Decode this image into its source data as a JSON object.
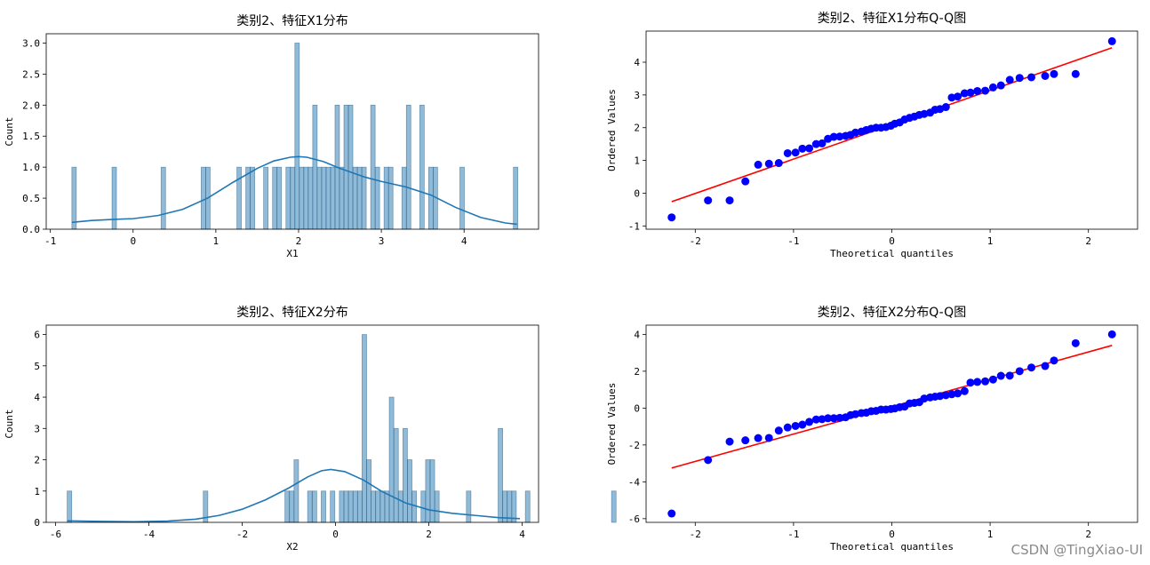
{
  "chart_data": [
    {
      "type": "histogram_kde",
      "title": "类别2、特征X1分布",
      "xlabel": "X1",
      "ylabel": "Count",
      "xlim": [
        -1.05,
        4.9
      ],
      "ylim": [
        0,
        3.15
      ],
      "xticks": [
        -1,
        0,
        1,
        2,
        3,
        4
      ],
      "yticks": [
        0.0,
        0.5,
        1.0,
        1.5,
        2.0,
        2.5,
        3.0
      ],
      "ytick_labels": [
        "0.0",
        "0.5",
        "1.0",
        "1.5",
        "2.0",
        "2.5",
        "3.0"
      ],
      "bin_start": -0.74,
      "bin_width": 0.0539,
      "bar_color": "#1f77b4",
      "bar_alpha": 0.5,
      "bar_counts": [
        1,
        0,
        0,
        0,
        0,
        0,
        0,
        0,
        0,
        1,
        0,
        0,
        0,
        0,
        0,
        0,
        0,
        0,
        0,
        0,
        1,
        0,
        0,
        0,
        0,
        0,
        0,
        0,
        0,
        1,
        1,
        0,
        0,
        0,
        0,
        0,
        0,
        1,
        0,
        1,
        1,
        0,
        0,
        1,
        0,
        1,
        1,
        0,
        1,
        1,
        3,
        1,
        1,
        1,
        2,
        1,
        1,
        1,
        1,
        2,
        1,
        2,
        2,
        1,
        1,
        1,
        0,
        2,
        1,
        0,
        1,
        1,
        0,
        0,
        1,
        2,
        0,
        0,
        2,
        0,
        1,
        1,
        0,
        0,
        0,
        0,
        0,
        1,
        0,
        0,
        0,
        0,
        0,
        0,
        0,
        0,
        0,
        0,
        0,
        1
      ],
      "kde": {
        "x": [
          -0.74,
          -0.5,
          -0.2,
          0.0,
          0.3,
          0.6,
          0.9,
          1.2,
          1.5,
          1.7,
          1.9,
          2.0,
          2.1,
          2.3,
          2.5,
          2.8,
          3.0,
          3.3,
          3.6,
          3.9,
          4.2,
          4.5,
          4.64
        ],
        "y": [
          0.11,
          0.14,
          0.16,
          0.17,
          0.22,
          0.32,
          0.5,
          0.75,
          0.98,
          1.1,
          1.16,
          1.17,
          1.16,
          1.09,
          0.98,
          0.84,
          0.77,
          0.68,
          0.55,
          0.35,
          0.19,
          0.1,
          0.08
        ],
        "color": "#1f77b4"
      }
    },
    {
      "type": "qqplot",
      "title": "类别2、特征X1分布Q-Q图",
      "xlabel": "Theoretical quantiles",
      "ylabel": "Ordered Values",
      "xlim": [
        -2.5,
        2.5
      ],
      "ylim": [
        -1.1,
        4.95
      ],
      "xticks": [
        -2,
        -1,
        0,
        1,
        2
      ],
      "yticks": [
        -1,
        0,
        1,
        2,
        3,
        4
      ],
      "point_color": "#0000ff",
      "line_color": "#ff0000",
      "line": {
        "x": [
          -2.24,
          2.24
        ],
        "y": [
          -0.26,
          4.44
        ]
      },
      "theoretical": [
        -2.24,
        -1.87,
        -1.65,
        -1.49,
        -1.36,
        -1.25,
        -1.15,
        -1.06,
        -0.98,
        -0.91,
        -0.84,
        -0.77,
        -0.71,
        -0.65,
        -0.59,
        -0.53,
        -0.47,
        -0.42,
        -0.37,
        -0.31,
        -0.26,
        -0.21,
        -0.16,
        -0.11,
        -0.06,
        -0.01,
        0.03,
        0.08,
        0.13,
        0.18,
        0.23,
        0.28,
        0.33,
        0.39,
        0.44,
        0.49,
        0.55,
        0.61,
        0.67,
        0.74,
        0.8,
        0.87,
        0.95,
        1.03,
        1.11,
        1.2,
        1.3,
        1.42,
        1.56,
        1.65,
        1.87,
        2.24
      ],
      "ordered": [
        -0.74,
        -0.22,
        -0.22,
        0.36,
        0.87,
        0.9,
        0.92,
        1.22,
        1.24,
        1.36,
        1.37,
        1.5,
        1.52,
        1.66,
        1.72,
        1.73,
        1.75,
        1.78,
        1.85,
        1.88,
        1.93,
        1.97,
        2.0,
        2.0,
        2.02,
        2.06,
        2.12,
        2.16,
        2.25,
        2.3,
        2.34,
        2.39,
        2.42,
        2.46,
        2.55,
        2.57,
        2.63,
        2.92,
        2.95,
        3.05,
        3.07,
        3.12,
        3.13,
        3.23,
        3.29,
        3.46,
        3.52,
        3.54,
        3.58,
        3.64,
        3.64,
        4.64
      ]
    },
    {
      "type": "histogram_kde",
      "title": "类别2、特征X2分布",
      "xlabel": "X2",
      "ylabel": "Count",
      "xlim": [
        -6.2,
        4.35
      ],
      "ylim": [
        0,
        6.3
      ],
      "xticks": [
        -6,
        -4,
        -2,
        0,
        2,
        4
      ],
      "yticks": [
        0,
        1,
        2,
        3,
        4,
        5,
        6
      ],
      "ytick_labels": [
        "0",
        "1",
        "2",
        "3",
        "4",
        "5",
        "6"
      ],
      "bin_start": -5.75,
      "bin_width": 0.0972,
      "bar_color": "#1f77b4",
      "bar_alpha": 0.5,
      "bar_counts": [
        1,
        0,
        0,
        0,
        0,
        0,
        0,
        0,
        0,
        0,
        0,
        0,
        0,
        0,
        0,
        0,
        0,
        0,
        0,
        0,
        0,
        0,
        0,
        0,
        0,
        0,
        0,
        0,
        0,
        0,
        1,
        0,
        0,
        0,
        0,
        0,
        0,
        0,
        0,
        0,
        0,
        0,
        0,
        0,
        0,
        0,
        0,
        0,
        1,
        1,
        2,
        0,
        0,
        1,
        1,
        0,
        1,
        0,
        1,
        0,
        1,
        1,
        1,
        1,
        1,
        6,
        2,
        1,
        1,
        1,
        1,
        4,
        3,
        1,
        3,
        2,
        1,
        0,
        1,
        2,
        2,
        1,
        0,
        0,
        0,
        0,
        0,
        0,
        1,
        0,
        0,
        0,
        0,
        0,
        0,
        3,
        1,
        1,
        1,
        0,
        0,
        1,
        0,
        0,
        0,
        0,
        0,
        0,
        0,
        0,
        0,
        0,
        0,
        0,
        0,
        0,
        0,
        0,
        0,
        0,
        1
      ],
      "kde": {
        "x": [
          -5.75,
          -5.0,
          -4.3,
          -3.6,
          -3.0,
          -2.5,
          -2.0,
          -1.5,
          -1.0,
          -0.6,
          -0.3,
          -0.1,
          0.2,
          0.6,
          1.0,
          1.5,
          2.0,
          2.5,
          3.0,
          3.5,
          3.95
        ],
        "y": [
          0.05,
          0.03,
          0.02,
          0.04,
          0.1,
          0.22,
          0.42,
          0.72,
          1.1,
          1.45,
          1.65,
          1.69,
          1.62,
          1.35,
          0.98,
          0.62,
          0.4,
          0.29,
          0.22,
          0.15,
          0.12
        ],
        "color": "#1f77b4"
      }
    },
    {
      "type": "qqplot",
      "title": "类别2、特征X2分布Q-Q图",
      "xlabel": "Theoretical quantiles",
      "ylabel": "Ordered Values",
      "xlim": [
        -2.5,
        2.5
      ],
      "ylim": [
        -6.2,
        4.5
      ],
      "xticks": [
        -2,
        -1,
        0,
        1,
        2
      ],
      "yticks": [
        -6,
        -4,
        -2,
        0,
        2,
        4
      ],
      "point_color": "#0000ff",
      "line_color": "#ff0000",
      "line": {
        "x": [
          -2.24,
          2.24
        ],
        "y": [
          -3.25,
          3.4
        ]
      },
      "theoretical": [
        -2.24,
        -1.87,
        -1.65,
        -1.49,
        -1.36,
        -1.25,
        -1.15,
        -1.06,
        -0.98,
        -0.91,
        -0.84,
        -0.77,
        -0.71,
        -0.65,
        -0.59,
        -0.53,
        -0.47,
        -0.42,
        -0.37,
        -0.31,
        -0.26,
        -0.21,
        -0.16,
        -0.11,
        -0.06,
        -0.01,
        0.03,
        0.08,
        0.13,
        0.18,
        0.23,
        0.28,
        0.33,
        0.39,
        0.44,
        0.49,
        0.55,
        0.61,
        0.67,
        0.74,
        0.8,
        0.87,
        0.95,
        1.03,
        1.11,
        1.2,
        1.3,
        1.42,
        1.56,
        1.65,
        1.87,
        2.24
      ],
      "ordered": [
        -5.72,
        -2.82,
        -1.82,
        -1.75,
        -1.63,
        -1.62,
        -1.22,
        -1.05,
        -0.97,
        -0.9,
        -0.75,
        -0.62,
        -0.6,
        -0.55,
        -0.55,
        -0.53,
        -0.5,
        -0.38,
        -0.33,
        -0.27,
        -0.25,
        -0.17,
        -0.15,
        -0.08,
        -0.08,
        -0.05,
        -0.02,
        0.05,
        0.08,
        0.25,
        0.28,
        0.32,
        0.52,
        0.58,
        0.62,
        0.65,
        0.7,
        0.75,
        0.8,
        0.92,
        1.38,
        1.42,
        1.45,
        1.55,
        1.75,
        1.76,
        2.0,
        2.2,
        2.28,
        2.58,
        3.52,
        4.0
      ]
    }
  ],
  "watermark": "CSDN @TingXiao-UI"
}
